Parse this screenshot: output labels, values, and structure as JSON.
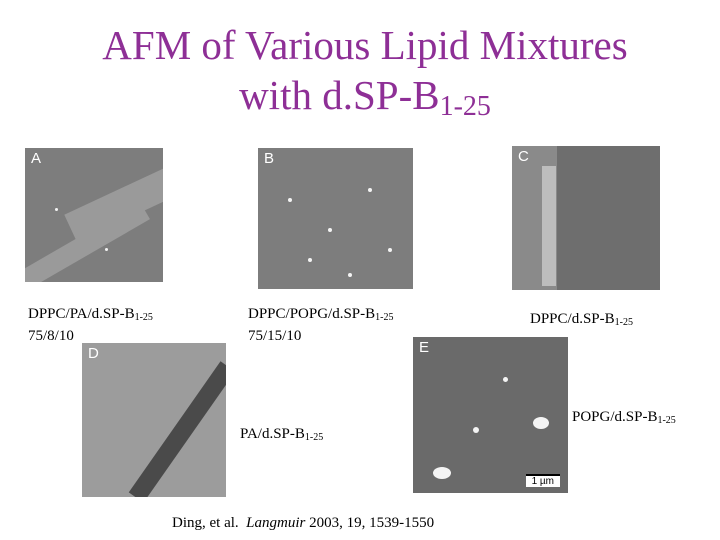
{
  "title": {
    "line1": "AFM of Various Lipid Mixtures",
    "line2": "with d.SP-B",
    "subscript": "1-25"
  },
  "panels": [
    {
      "letter": "A",
      "caption": {
        "main": "DPPC/PA/d.SP-B",
        "subscript": "1-25",
        "ratio": "75/8/10"
      }
    },
    {
      "letter": "B",
      "caption": {
        "main": "DPPC/POPG/d.SP-B",
        "subscript": "1-25",
        "ratio": "75/15/10"
      }
    },
    {
      "letter": "C",
      "caption": {
        "main": "DPPC/d.SP-B",
        "subscript": "1-25"
      }
    },
    {
      "letter": "D",
      "caption": {
        "main": "PA/d.SP-B",
        "subscript": "1-25"
      }
    },
    {
      "letter": "E",
      "caption": {
        "main": "POPG/d.SP-B",
        "subscript": "1-25"
      },
      "scale_bar": "1 µm"
    }
  ],
  "citation": {
    "authors": "Ding, et al.",
    "journal": "Langmuir",
    "details": "2003, 19, 1539-1550"
  }
}
